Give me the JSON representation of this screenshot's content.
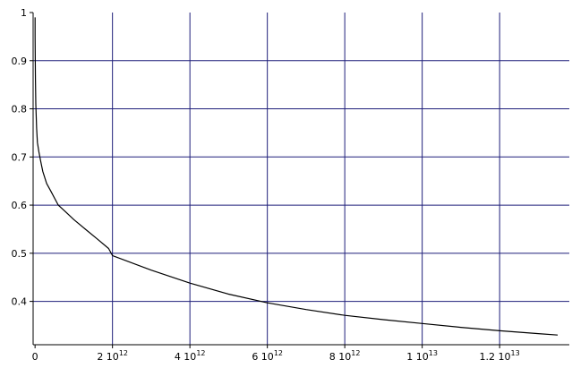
{
  "chart_data": {
    "type": "line",
    "title": "",
    "xlabel": "",
    "ylabel": "",
    "xlim": [
      -50000000000.0,
      13800000000000.0
    ],
    "ylim": [
      0.31,
      1.0
    ],
    "grid": true,
    "colors": {
      "grid": "#1f1f7a",
      "axis": "#000000",
      "line": "#000000"
    },
    "x_ticks": [
      {
        "value": 0,
        "mantissa": "0",
        "exp": ""
      },
      {
        "value": 2000000000000.0,
        "mantissa": "2",
        "exp": "12"
      },
      {
        "value": 4000000000000.0,
        "mantissa": "4",
        "exp": "12"
      },
      {
        "value": 6000000000000.0,
        "mantissa": "6",
        "exp": "12"
      },
      {
        "value": 8000000000000.0,
        "mantissa": "8",
        "exp": "12"
      },
      {
        "value": 10000000000000.0,
        "mantissa": "1",
        "exp": "13"
      },
      {
        "value": 12000000000000.0,
        "mantissa": "1.2",
        "exp": "13"
      }
    ],
    "y_ticks": [
      {
        "value": 0.4,
        "label": "0.4"
      },
      {
        "value": 0.5,
        "label": "0.5"
      },
      {
        "value": 0.6,
        "label": "0.6"
      },
      {
        "value": 0.7,
        "label": "0.7"
      },
      {
        "value": 0.8,
        "label": "0.8"
      },
      {
        "value": 0.9,
        "label": "0.9"
      },
      {
        "value": 1.0,
        "label": "1"
      }
    ],
    "series": [
      {
        "x": [
          0,
          1000000000.0,
          5000000000.0,
          10000000000.0,
          20000000000.0,
          40000000000.0,
          60000000000.0,
          100000000000.0,
          150000000000.0,
          200000000000.0,
          300000000000.0,
          400000000000.0,
          600000000000.0,
          800000000000.0,
          1000000000000.0,
          1300000000000.0,
          1600000000000.0,
          1900000000000.0,
          2000000000000.0,
          3000000000000.0,
          4000000000000.0,
          5000000000000.0,
          6000000000000.0,
          7000000000000.0,
          8000000000000.0,
          9000000000000.0,
          10000000000000.0,
          11000000000000.0,
          12000000000000.0,
          13000000000000.0,
          13500000000000.0
        ],
        "y": [
          0.99,
          0.95,
          0.9,
          0.86,
          0.81,
          0.76,
          0.73,
          0.71,
          0.69,
          0.67,
          0.645,
          0.63,
          0.6,
          0.585,
          0.57,
          0.55,
          0.53,
          0.51,
          0.495,
          0.465,
          0.438,
          0.415,
          0.397,
          0.383,
          0.371,
          0.362,
          0.354,
          0.346,
          0.339,
          0.333,
          0.33
        ]
      }
    ]
  }
}
